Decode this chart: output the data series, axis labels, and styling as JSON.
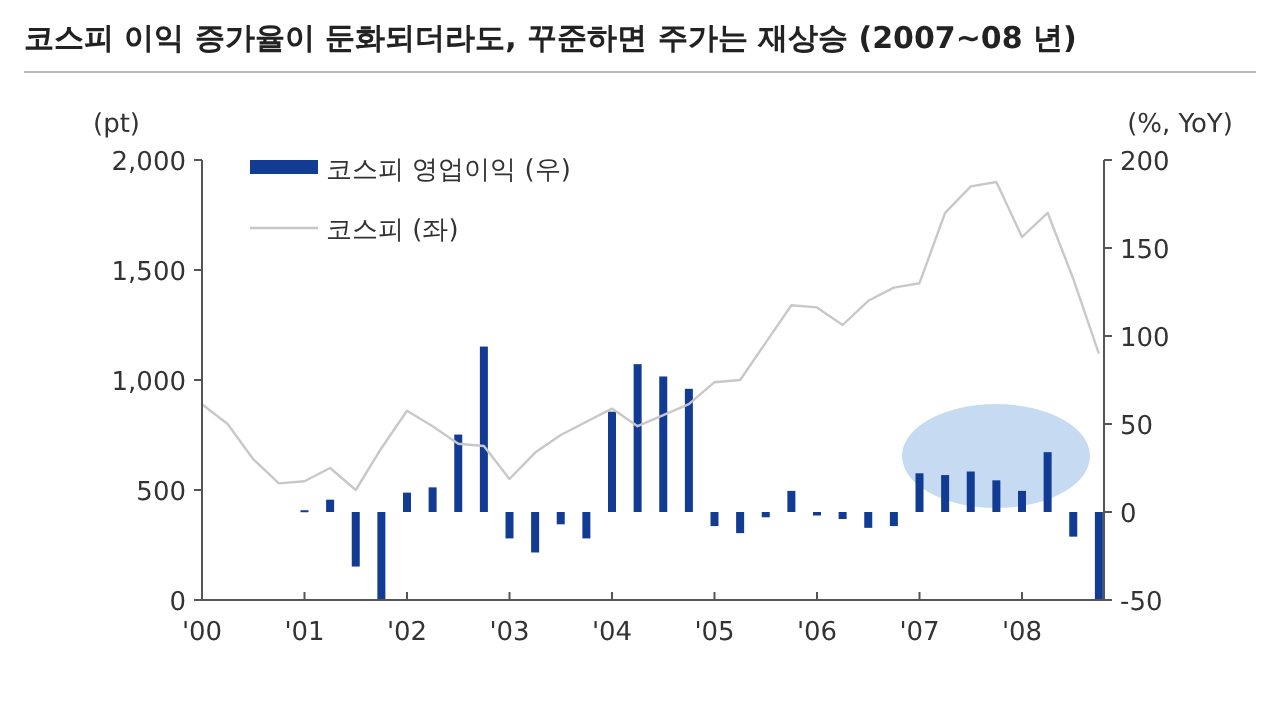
{
  "chart_data": {
    "type": "bar",
    "title": "코스피 이익 증가율이 둔화되더라도, 꾸준하면 주가는 재상승 (2007~08 년)",
    "ylabel": "(pt)",
    "y2label": "(%, YoY)",
    "xlim": [
      2000,
      2008.8
    ],
    "xticks": [
      {
        "value": 2000,
        "label": "'00"
      },
      {
        "value": 2001,
        "label": "'01"
      },
      {
        "value": 2002,
        "label": "'02"
      },
      {
        "value": 2003,
        "label": "'03"
      },
      {
        "value": 2004,
        "label": "'04"
      },
      {
        "value": 2005,
        "label": "'05"
      },
      {
        "value": 2006,
        "label": "'06"
      },
      {
        "value": 2007,
        "label": "'07"
      },
      {
        "value": 2008,
        "label": "'08"
      }
    ],
    "ylim": [
      0,
      2000
    ],
    "yticks": [
      0,
      {
        "value": 500,
        "label": "500"
      },
      {
        "value": 1000,
        "label": "1,000"
      },
      {
        "value": 1500,
        "label": "1,500"
      },
      {
        "value": 2000,
        "label": "2,000"
      }
    ],
    "y2lim": [
      -50,
      200
    ],
    "y2ticks": [
      -50,
      0,
      50,
      100,
      150,
      200
    ],
    "legend": "top left",
    "grid": false,
    "series": [
      {
        "name": "코스피 영업이익 (우)",
        "axis": "y2",
        "color": "#123c94",
        "x": [
          2001,
          2001.25,
          2001.5,
          2001.75,
          2002,
          2002.25,
          2002.5,
          2002.75,
          2003,
          2003.25,
          2003.5,
          2003.75,
          2004,
          2004.25,
          2004.5,
          2004.75,
          2005,
          2005.25,
          2005.5,
          2005.75,
          2006,
          2006.25,
          2006.5,
          2006.75,
          2007,
          2007.25,
          2007.5,
          2007.75,
          2008,
          2008.25,
          2008.5,
          2008.75
        ],
        "values": [
          1,
          7,
          -31,
          -50,
          11,
          14,
          44,
          94,
          -15,
          -23,
          -7,
          -15,
          57,
          84,
          77,
          70,
          -8,
          -12,
          -3,
          12,
          -2,
          -4,
          -9,
          -8,
          22,
          21,
          23,
          18,
          12,
          34,
          -14,
          -50
        ]
      },
      {
        "name": "코스피 (좌)",
        "type": "line",
        "color": "#c8c8c8",
        "x": [
          2000,
          2000.25,
          2000.5,
          2000.75,
          2001,
          2001.25,
          2001.5,
          2001.75,
          2002,
          2002.25,
          2002.5,
          2002.75,
          2003,
          2003.25,
          2003.5,
          2003.75,
          2004,
          2004.25,
          2004.5,
          2004.75,
          2005,
          2005.25,
          2005.5,
          2005.75,
          2006,
          2006.25,
          2006.5,
          2006.75,
          2007,
          2007.25,
          2007.5,
          2007.75,
          2008,
          2008.25,
          2008.5,
          2008.75
        ],
        "values": [
          890,
          800,
          640,
          530,
          540,
          600,
          500,
          690,
          860,
          790,
          710,
          700,
          550,
          670,
          750,
          810,
          870,
          790,
          840,
          890,
          990,
          1000,
          1170,
          1340,
          1330,
          1250,
          1360,
          1420,
          1440,
          1760,
          1880,
          1900,
          1650,
          1760,
          1460,
          1120
        ]
      }
    ]
  }
}
